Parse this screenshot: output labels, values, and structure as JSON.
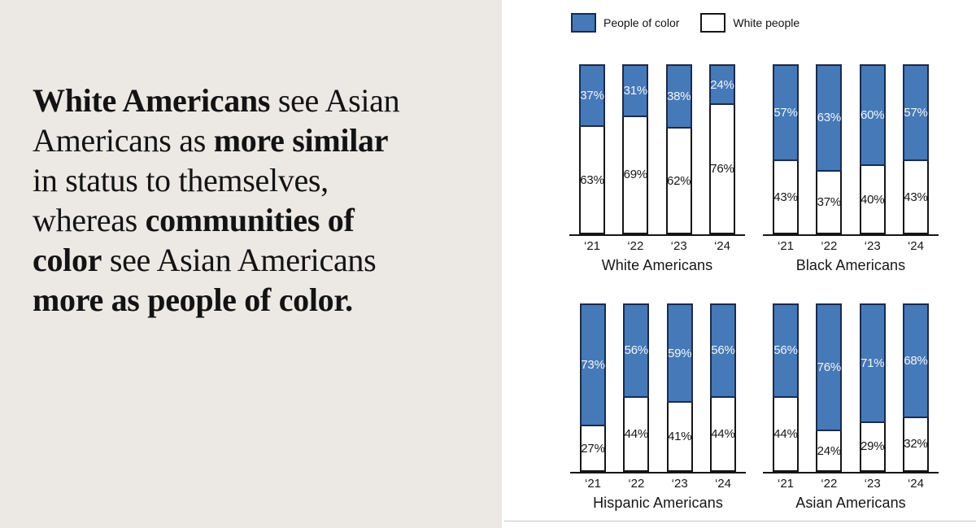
{
  "headline": {
    "lines": [
      [
        {
          "t": "White Americans",
          "b": 1
        },
        {
          "t": " see Asian",
          "b": 0
        }
      ],
      [
        {
          "t": "Americans as ",
          "b": 0
        },
        {
          "t": "more similar",
          "b": 1
        }
      ],
      [
        {
          "t": "in status to themselves,",
          "b": 0
        }
      ],
      [
        {
          "t": "whereas ",
          "b": 0
        },
        {
          "t": "communities of",
          "b": 1
        }
      ],
      [
        {
          "t": "color",
          "b": 1
        },
        {
          "t": " see Asian Americans",
          "b": 0
        }
      ],
      [
        {
          "t": "more as people of color.",
          "b": 1
        }
      ]
    ]
  },
  "legend": {
    "items": [
      {
        "label": "People of color",
        "fill": "#4579B8",
        "border": "#1B2B4D"
      },
      {
        "label": "White people",
        "fill": "#FFFFFF",
        "border": "#161616"
      }
    ]
  },
  "chart_data": {
    "type": "bar",
    "stacked": true,
    "unit": "%",
    "title": "",
    "categories": [
      "‘21",
      "‘22",
      "‘23",
      "‘24"
    ],
    "series_labels": [
      "People of color",
      "White people"
    ],
    "ylim": [
      0,
      100
    ],
    "grid": false,
    "legend_position": "top",
    "groups": [
      {
        "title": "White Americans",
        "poc": [
          37,
          31,
          38,
          24
        ],
        "white": [
          63,
          69,
          62,
          76
        ]
      },
      {
        "title": "Black Americans",
        "poc": [
          57,
          63,
          60,
          57
        ],
        "white": [
          43,
          37,
          40,
          43
        ]
      },
      {
        "title": "Hispanic Americans",
        "poc": [
          73,
          56,
          59,
          56
        ],
        "white": [
          27,
          44,
          41,
          44
        ]
      },
      {
        "title": "Asian Americans",
        "poc": [
          56,
          76,
          71,
          68
        ],
        "white": [
          44,
          24,
          29,
          32
        ]
      }
    ],
    "colors": {
      "poc_fill": "#4579B8",
      "poc_border": "#1B2B4D",
      "white_fill": "#FFFFFF",
      "white_border": "#161616"
    }
  }
}
